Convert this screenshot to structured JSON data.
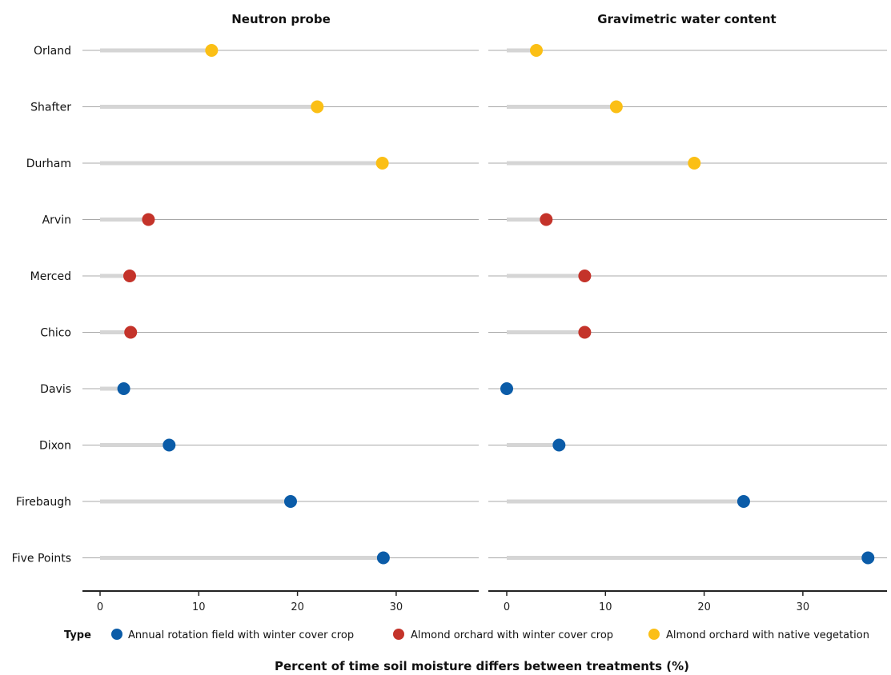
{
  "chart_data": {
    "type": "dot_lollipop",
    "categories": [
      "Orland",
      "Shafter",
      "Durham",
      "Arvin",
      "Merced",
      "Chico",
      "Davis",
      "Dixon",
      "Firebaugh",
      "Five Points"
    ],
    "category_types": [
      "Almond orchard with native vegetation",
      "Almond orchard with native vegetation",
      "Almond orchard with native vegetation",
      "Almond orchard with winter cover crop",
      "Almond orchard with winter cover crop",
      "Almond orchard with winter cover crop",
      "Annual rotation field with winter cover crop",
      "Annual rotation field with winter cover crop",
      "Annual rotation field with winter cover crop",
      "Annual rotation field with winter cover crop"
    ],
    "panels": [
      {
        "title": "Neutron probe",
        "values": [
          11.3,
          22.0,
          28.6,
          4.9,
          3.0,
          3.1,
          2.4,
          7.0,
          19.3,
          28.7
        ],
        "xlim": [
          -1.5,
          38
        ],
        "xticks": [
          0,
          10,
          20,
          30
        ]
      },
      {
        "title": "Gravimetric water content",
        "values": [
          3.0,
          11.1,
          19.0,
          4.0,
          7.9,
          7.9,
          0.0,
          5.3,
          24.0,
          36.6
        ],
        "xlim": [
          -1.5,
          38
        ],
        "xticks": [
          0,
          10,
          20,
          30
        ]
      }
    ],
    "xlabel": "Percent of time soil moisture differs between treatments (%)",
    "legend": {
      "title": "Type",
      "position": "bottom",
      "entries": [
        {
          "name": "Annual rotation field with winter cover crop",
          "color": "#0b5ca8"
        },
        {
          "name": "Almond orchard with winter cover crop",
          "color": "#c4332a"
        },
        {
          "name": "Almond orchard with native vegetation",
          "color": "#fbbf15"
        }
      ]
    },
    "colors": {
      "stem": "#d5d5d5",
      "gridline": "#a8a8a8",
      "axis": "#222222"
    }
  }
}
